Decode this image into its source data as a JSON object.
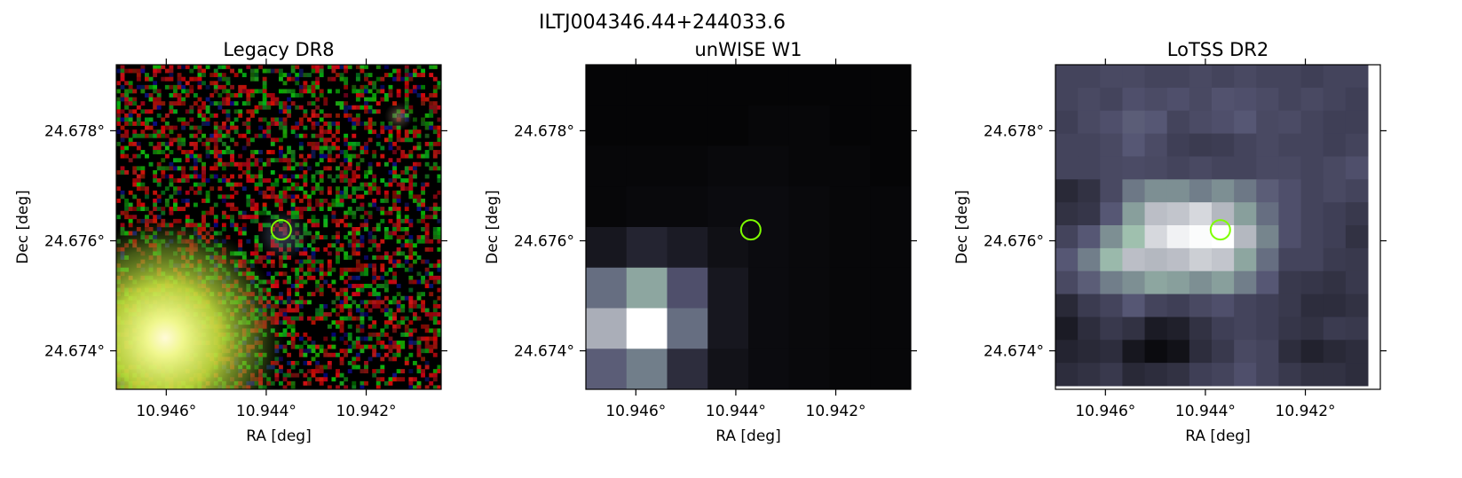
{
  "figure": {
    "title": "ILTJ004346.44+244033.6"
  },
  "chart_data": [
    {
      "type": "heatmap",
      "title": "Legacy DR8",
      "xlabel": "RA [deg]",
      "ylabel": "Dec [deg]",
      "xlim": [
        10.947,
        10.9405
      ],
      "ylim": [
        24.6733,
        24.6792
      ],
      "x_ticks": [
        10.946,
        10.944,
        10.942
      ],
      "x_tick_labels": [
        "10.946°",
        "10.944°",
        "10.942°"
      ],
      "y_ticks": [
        24.674,
        24.676,
        24.678
      ],
      "y_tick_labels": [
        "24.674°",
        "24.676°",
        "24.678°"
      ],
      "marker": {
        "shape": "circle",
        "ra": 10.9437,
        "dec": 24.6762,
        "color": "#7fff00"
      },
      "image": "rgb colour noise map with a bright yellow-green source in the lower left and a faint source near the marker"
    },
    {
      "type": "heatmap",
      "title": "unWISE W1",
      "xlabel": "RA [deg]",
      "ylabel": "Dec [deg]",
      "xlim": [
        10.947,
        10.9405
      ],
      "ylim": [
        24.6733,
        24.6792
      ],
      "x_ticks": [
        10.946,
        10.944,
        10.942
      ],
      "x_tick_labels": [
        "10.946°",
        "10.944°",
        "10.942°"
      ],
      "y_ticks": [
        24.674,
        24.676,
        24.678
      ],
      "y_tick_labels": [
        "24.674°",
        "24.676°",
        "24.678°"
      ],
      "marker": {
        "shape": "circle",
        "ra": 10.9437,
        "dec": 24.6762,
        "color": "#7fff00"
      },
      "colormap": "bone",
      "grid": [
        [
          0.02,
          0.02,
          0.02,
          0.02,
          0.02,
          0.02,
          0.02,
          0.02
        ],
        [
          0.02,
          0.02,
          0.02,
          0.02,
          0.03,
          0.03,
          0.02,
          0.02
        ],
        [
          0.03,
          0.03,
          0.03,
          0.04,
          0.04,
          0.03,
          0.03,
          0.02
        ],
        [
          0.03,
          0.04,
          0.04,
          0.05,
          0.05,
          0.04,
          0.03,
          0.03
        ],
        [
          0.1,
          0.16,
          0.12,
          0.07,
          0.05,
          0.04,
          0.03,
          0.03
        ],
        [
          0.45,
          0.62,
          0.35,
          0.1,
          0.05,
          0.04,
          0.03,
          0.03
        ],
        [
          0.75,
          1.0,
          0.45,
          0.1,
          0.05,
          0.04,
          0.03,
          0.03
        ],
        [
          0.4,
          0.5,
          0.2,
          0.08,
          0.05,
          0.04,
          0.03,
          0.03
        ]
      ]
    },
    {
      "type": "heatmap",
      "title": "LoTSS DR2",
      "xlabel": "RA [deg]",
      "ylabel": "Dec [deg]",
      "xlim": [
        10.947,
        10.9405
      ],
      "ylim": [
        24.6733,
        24.6792
      ],
      "x_ticks": [
        10.946,
        10.944,
        10.942
      ],
      "x_tick_labels": [
        "10.946°",
        "10.944°",
        "10.942°"
      ],
      "y_ticks": [
        24.674,
        24.676,
        24.678
      ],
      "y_tick_labels": [
        "24.674°",
        "24.676°",
        "24.678°"
      ],
      "marker": {
        "shape": "circle",
        "ra": 10.9437,
        "dec": 24.6762,
        "color": "#7fff00"
      },
      "colormap": "bone",
      "grid": [
        [
          0.3,
          0.3,
          0.32,
          0.32,
          0.3,
          0.3,
          0.32,
          0.3,
          0.32,
          0.3,
          0.3,
          0.28,
          0.3,
          0.3
        ],
        [
          0.3,
          0.32,
          0.3,
          0.35,
          0.33,
          0.35,
          0.32,
          0.36,
          0.35,
          0.33,
          0.3,
          0.32,
          0.3,
          0.28
        ],
        [
          0.28,
          0.32,
          0.35,
          0.4,
          0.38,
          0.3,
          0.33,
          0.35,
          0.38,
          0.32,
          0.33,
          0.3,
          0.28,
          0.28
        ],
        [
          0.3,
          0.3,
          0.32,
          0.38,
          0.33,
          0.28,
          0.26,
          0.27,
          0.3,
          0.32,
          0.3,
          0.3,
          0.28,
          0.3
        ],
        [
          0.3,
          0.3,
          0.32,
          0.33,
          0.32,
          0.3,
          0.32,
          0.3,
          0.3,
          0.32,
          0.32,
          0.3,
          0.32,
          0.35
        ],
        [
          0.18,
          0.22,
          0.32,
          0.48,
          0.55,
          0.55,
          0.5,
          0.55,
          0.48,
          0.4,
          0.35,
          0.3,
          0.32,
          0.3
        ],
        [
          0.22,
          0.24,
          0.38,
          0.6,
          0.8,
          0.82,
          0.88,
          0.78,
          0.6,
          0.45,
          0.35,
          0.3,
          0.28,
          0.25
        ],
        [
          0.3,
          0.38,
          0.55,
          0.7,
          0.88,
          0.96,
          0.99,
          1.0,
          0.78,
          0.52,
          0.35,
          0.3,
          0.28,
          0.22
        ],
        [
          0.38,
          0.5,
          0.68,
          0.8,
          0.78,
          0.8,
          0.85,
          0.82,
          0.62,
          0.45,
          0.3,
          0.3,
          0.26,
          0.25
        ],
        [
          0.32,
          0.4,
          0.5,
          0.55,
          0.62,
          0.6,
          0.55,
          0.6,
          0.5,
          0.38,
          0.25,
          0.24,
          0.22,
          0.25
        ],
        [
          0.18,
          0.26,
          0.3,
          0.38,
          0.3,
          0.28,
          0.32,
          0.35,
          0.3,
          0.28,
          0.25,
          0.2,
          0.2,
          0.22
        ],
        [
          0.12,
          0.2,
          0.25,
          0.22,
          0.12,
          0.14,
          0.22,
          0.28,
          0.3,
          0.28,
          0.24,
          0.22,
          0.26,
          0.25
        ],
        [
          0.16,
          0.18,
          0.2,
          0.1,
          0.05,
          0.08,
          0.2,
          0.25,
          0.32,
          0.3,
          0.2,
          0.15,
          0.18,
          0.2
        ],
        [
          0.2,
          0.22,
          0.25,
          0.18,
          0.2,
          0.22,
          0.28,
          0.3,
          0.35,
          0.3,
          0.25,
          0.22,
          0.22,
          0.2
        ]
      ]
    }
  ]
}
